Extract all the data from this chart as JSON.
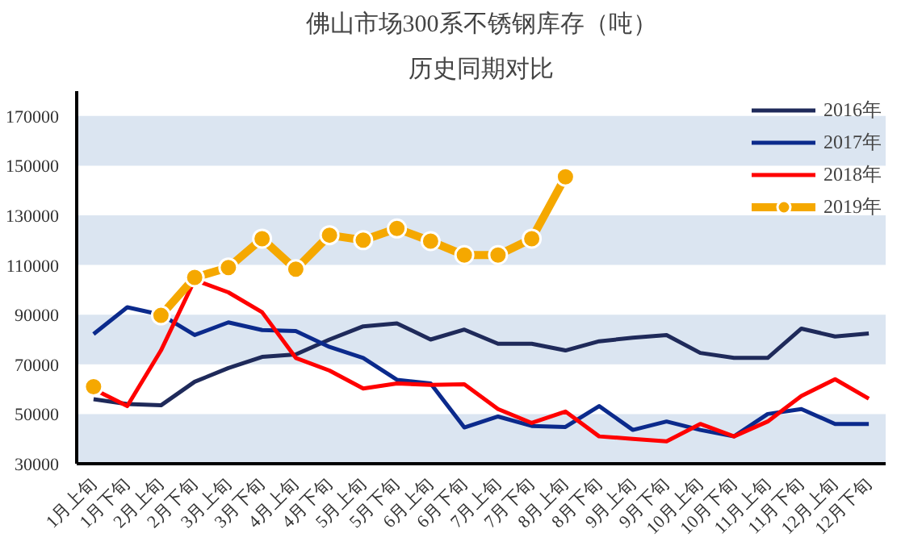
{
  "chart_data": {
    "type": "line",
    "title": "佛山市场300系不锈钢库存（吨）",
    "subtitle": "历史同期对比",
    "categories": [
      "1月上旬",
      "1月下旬",
      "2月上旬",
      "2月下旬",
      "3月上旬",
      "3月下旬",
      "4月上旬",
      "4月下旬",
      "5月上旬",
      "5月下旬",
      "6月上旬",
      "6月下旬",
      "7月上旬",
      "7月下旬",
      "8月上旬",
      "8月下旬",
      "9月上旬",
      "9月下旬",
      "10月上旬",
      "10月下旬",
      "11月上旬",
      "11月下旬",
      "12月上旬",
      "12月下旬"
    ],
    "series": [
      {
        "name": "2016年",
        "color": "#1f2a5a",
        "values": [
          56000,
          54000,
          53500,
          63000,
          68500,
          73000,
          74000,
          80000,
          85300,
          86500,
          80000,
          84000,
          78300,
          78300,
          75600,
          79300,
          80700,
          81800,
          74600,
          72600,
          72600,
          84400,
          81200,
          82400
        ]
      },
      {
        "name": "2017年",
        "color": "#0b2a8c",
        "values": [
          82200,
          93000,
          90000,
          81800,
          86900,
          83800,
          83400,
          77000,
          72600,
          63800,
          62300,
          44600,
          49000,
          45200,
          44800,
          53200,
          43600,
          47000,
          43600,
          41000,
          50000,
          52000,
          46000,
          46000
        ]
      },
      {
        "name": "2018年",
        "color": "#ff0000",
        "values": [
          60000,
          53200,
          75600,
          104000,
          99000,
          91000,
          72600,
          67500,
          60300,
          62300,
          61700,
          62000,
          52000,
          46400,
          51000,
          41000,
          40000,
          39000,
          46000,
          41000,
          47000,
          57300,
          64000,
          56200
        ]
      },
      {
        "name": "2019年",
        "color": "#f5a800",
        "marker": "circle",
        "values": [
          61000,
          null,
          89700,
          105000,
          109000,
          120600,
          108300,
          122000,
          120000,
          124700,
          119600,
          114000,
          114000,
          120600,
          145500,
          null,
          null,
          null,
          null,
          null,
          null,
          null,
          null,
          null
        ]
      }
    ],
    "ylim": [
      30000,
      180000
    ],
    "yticks": [
      30000,
      50000,
      70000,
      90000,
      110000,
      130000,
      150000,
      170000
    ],
    "bands": [
      {
        "axis": "y",
        "from": 30000,
        "to": 50000,
        "color": "#dbe5f1"
      },
      {
        "axis": "y",
        "from": 70000,
        "to": 90000,
        "color": "#dbe5f1"
      },
      {
        "axis": "y",
        "from": 110000,
        "to": 130000,
        "color": "#dbe5f1"
      },
      {
        "axis": "y",
        "from": 150000,
        "to": 170000,
        "color": "#dbe5f1"
      }
    ],
    "legend": "top right"
  }
}
